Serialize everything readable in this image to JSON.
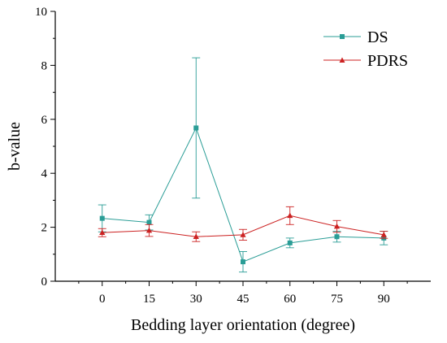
{
  "chart_data": {
    "type": "line",
    "xlabel": "Bedding layer orientation (degree)",
    "ylabel": "b-value",
    "x": [
      0,
      15,
      30,
      45,
      60,
      75,
      90
    ],
    "xticks": [
      "0",
      "15",
      "30",
      "45",
      "60",
      "75",
      "90"
    ],
    "xlim": [
      -15,
      105
    ],
    "ylim": [
      0,
      10
    ],
    "yticks": [
      "0",
      "2",
      "4",
      "6",
      "8",
      "10"
    ],
    "grid": false,
    "legend_position": "top-right",
    "series": [
      {
        "name": "DS",
        "color": "#2a9d96",
        "marker": "square",
        "values": [
          2.33,
          2.18,
          5.68,
          0.72,
          1.42,
          1.65,
          1.6
        ],
        "errors": [
          0.5,
          0.28,
          2.6,
          0.38,
          0.18,
          0.2,
          0.25
        ]
      },
      {
        "name": "PDRS",
        "color": "#cc2222",
        "marker": "triangle",
        "values": [
          1.8,
          1.88,
          1.65,
          1.72,
          2.43,
          2.03,
          1.72
        ],
        "errors": [
          0.15,
          0.22,
          0.18,
          0.2,
          0.33,
          0.22,
          0.13
        ]
      }
    ]
  }
}
